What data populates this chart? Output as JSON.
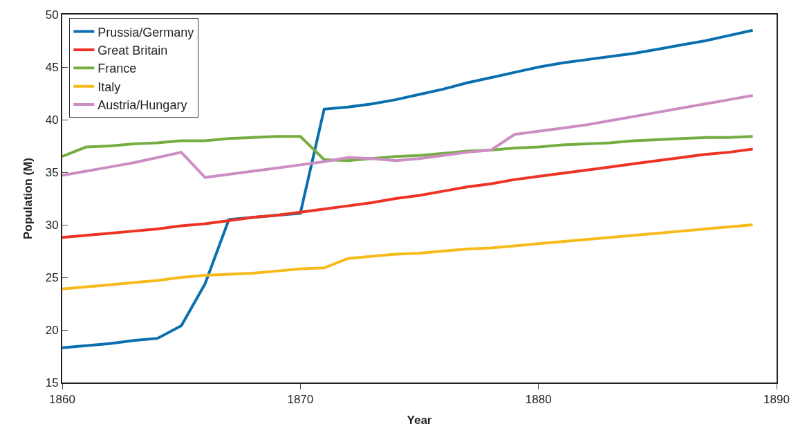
{
  "chart_data": {
    "type": "line",
    "xlabel": "Year",
    "ylabel": "Population (M)",
    "x": [
      1860,
      1861,
      1862,
      1863,
      1864,
      1865,
      1866,
      1867,
      1868,
      1869,
      1870,
      1871,
      1872,
      1873,
      1874,
      1875,
      1876,
      1877,
      1878,
      1879,
      1880,
      1881,
      1882,
      1883,
      1884,
      1885,
      1886,
      1887,
      1888,
      1889
    ],
    "series": [
      {
        "name": "Prussia/Germany",
        "color": "#0a6fae",
        "values": [
          18.3,
          18.5,
          18.7,
          19.0,
          19.2,
          20.4,
          24.4,
          30.5,
          30.7,
          30.9,
          31.1,
          41.0,
          41.2,
          41.5,
          41.9,
          42.4,
          42.9,
          43.5,
          44.0,
          44.5,
          45.0,
          45.4,
          45.7,
          46.0,
          46.3,
          46.7,
          47.1,
          47.5,
          48.0,
          48.5
        ]
      },
      {
        "name": "Great Britain",
        "color": "#ee3224",
        "values": [
          28.8,
          29.0,
          29.2,
          29.4,
          29.6,
          29.9,
          30.1,
          30.4,
          30.7,
          30.9,
          31.2,
          31.5,
          31.8,
          32.1,
          32.5,
          32.8,
          33.2,
          33.6,
          33.9,
          34.3,
          34.6,
          34.9,
          35.2,
          35.5,
          35.8,
          36.1,
          36.4,
          36.7,
          36.9,
          37.2
        ]
      },
      {
        "name": "France",
        "color": "#76ad42",
        "values": [
          36.5,
          37.4,
          37.5,
          37.7,
          37.8,
          38.0,
          38.0,
          38.2,
          38.3,
          38.4,
          38.4,
          36.2,
          36.1,
          36.3,
          36.5,
          36.6,
          36.8,
          37.0,
          37.1,
          37.3,
          37.4,
          37.6,
          37.7,
          37.8,
          38.0,
          38.1,
          38.2,
          38.3,
          38.3,
          38.4
        ]
      },
      {
        "name": "Italy",
        "color": "#f7bb19",
        "values": [
          23.9,
          24.1,
          24.3,
          24.5,
          24.7,
          25.0,
          25.2,
          25.3,
          25.4,
          25.6,
          25.8,
          25.9,
          26.8,
          27.0,
          27.2,
          27.3,
          27.5,
          27.7,
          27.8,
          28.0,
          28.2,
          28.4,
          28.6,
          28.8,
          29.0,
          29.2,
          29.4,
          29.6,
          29.8,
          30.0
        ]
      },
      {
        "name": "Austria/Hungary",
        "color": "#cc8dc2",
        "values": [
          34.7,
          35.1,
          35.5,
          35.9,
          36.4,
          36.9,
          34.5,
          34.8,
          35.1,
          35.4,
          35.7,
          36.0,
          36.4,
          36.3,
          36.1,
          36.3,
          36.6,
          36.9,
          37.1,
          38.6,
          38.9,
          39.2,
          39.5,
          39.9,
          40.3,
          40.7,
          41.1,
          41.5,
          41.9,
          42.3
        ]
      }
    ],
    "xlim": [
      1860,
      1890
    ],
    "xticks": [
      1860,
      1870,
      1880,
      1890
    ],
    "ylim": [
      15,
      50
    ],
    "yticks": [
      15,
      20,
      25,
      30,
      35,
      40,
      45,
      50
    ],
    "legend": "top left",
    "marker": "none",
    "line_style": "solid"
  }
}
